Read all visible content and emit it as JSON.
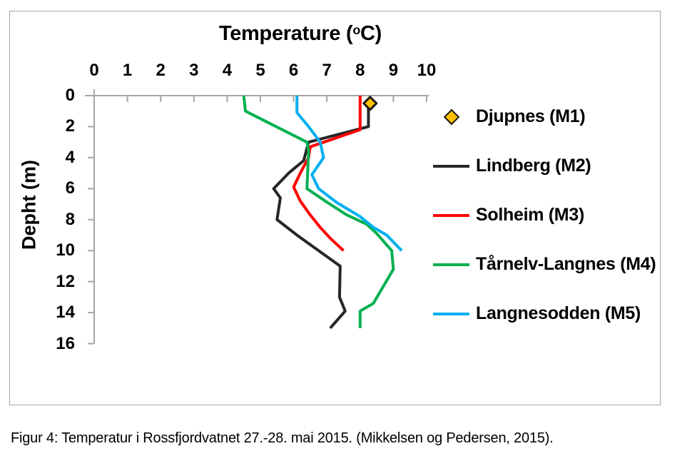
{
  "figure": {
    "caption": "Figur 4: Temperatur i Rossfjordvatnet 27.-28. mai 2015. (Mikkelsen og Pedersen, 2015)."
  },
  "chart_data": {
    "type": "line",
    "profile": "temperature-vs-depth",
    "title_parts": {
      "prefix": "Temperature (",
      "sup": "o",
      "suffix": "C)"
    },
    "title_plain": "Temperature (°C)",
    "xlabel": "Temperature (°C)",
    "ylabel": "Depht (m)",
    "x_axis": {
      "min": 0,
      "max": 10,
      "ticks": [
        0,
        1,
        2,
        3,
        4,
        5,
        6,
        7,
        8,
        9,
        10
      ],
      "position": "top"
    },
    "y_axis": {
      "min": 0,
      "max": 16,
      "ticks": [
        0,
        2,
        4,
        6,
        8,
        10,
        12,
        14,
        16
      ],
      "reversed": true
    },
    "grid": false,
    "legend_position": "right",
    "axis_color": "#A6A6A6",
    "point_format": "[temperature_C, depth_m]",
    "series": [
      {
        "name": "Djupnes (M1)",
        "type": "scatter",
        "marker": "diamond",
        "color": "#FFC000",
        "marker_border": "#1A1A1A",
        "points": [
          [
            8.3,
            0.5
          ]
        ]
      },
      {
        "name": "Lindberg (M2)",
        "type": "line",
        "color": "#262626",
        "points": [
          [
            8.25,
            0.5
          ],
          [
            8.25,
            2
          ],
          [
            6.45,
            3
          ],
          [
            6.3,
            4.2
          ],
          [
            5.85,
            5
          ],
          [
            5.4,
            6
          ],
          [
            5.6,
            6.6
          ],
          [
            5.5,
            8
          ],
          [
            6.1,
            9
          ],
          [
            7.4,
            11
          ],
          [
            7.38,
            13
          ],
          [
            7.55,
            13.9
          ],
          [
            7.1,
            15
          ]
        ]
      },
      {
        "name": "Solheim (M3)",
        "type": "line",
        "color": "#FF0000",
        "points": [
          [
            8.0,
            0
          ],
          [
            8.0,
            2.2
          ],
          [
            6.5,
            3.3
          ],
          [
            6.45,
            4
          ],
          [
            6.2,
            5
          ],
          [
            6.0,
            5.9
          ],
          [
            6.2,
            6.8
          ],
          [
            6.5,
            7.7
          ],
          [
            6.8,
            8.5
          ],
          [
            7.1,
            9.2
          ],
          [
            7.5,
            10
          ]
        ]
      },
      {
        "name": "Tårnelv-Langnes (M4)",
        "type": "line",
        "color": "#00B050",
        "points": [
          [
            4.5,
            0
          ],
          [
            4.55,
            1
          ],
          [
            6.4,
            3
          ],
          [
            6.45,
            3.6
          ],
          [
            6.4,
            6
          ],
          [
            6.95,
            6.8
          ],
          [
            7.6,
            7.7
          ],
          [
            8.2,
            8.3
          ],
          [
            8.5,
            8.9
          ],
          [
            8.95,
            10
          ],
          [
            9.0,
            11.2
          ],
          [
            8.7,
            12.3
          ],
          [
            8.4,
            13.4
          ],
          [
            8.0,
            13.9
          ],
          [
            8.0,
            15
          ]
        ]
      },
      {
        "name": "Langnesodden (M5)",
        "type": "line",
        "color": "#00B0F0",
        "points": [
          [
            6.1,
            0
          ],
          [
            6.1,
            1.1
          ],
          [
            6.45,
            2
          ],
          [
            6.8,
            3
          ],
          [
            6.9,
            4
          ],
          [
            6.55,
            5.1
          ],
          [
            6.75,
            6
          ],
          [
            7.3,
            6.9
          ],
          [
            8.0,
            7.8
          ],
          [
            8.4,
            8.5
          ],
          [
            8.8,
            9
          ],
          [
            9.25,
            10
          ]
        ]
      }
    ]
  }
}
